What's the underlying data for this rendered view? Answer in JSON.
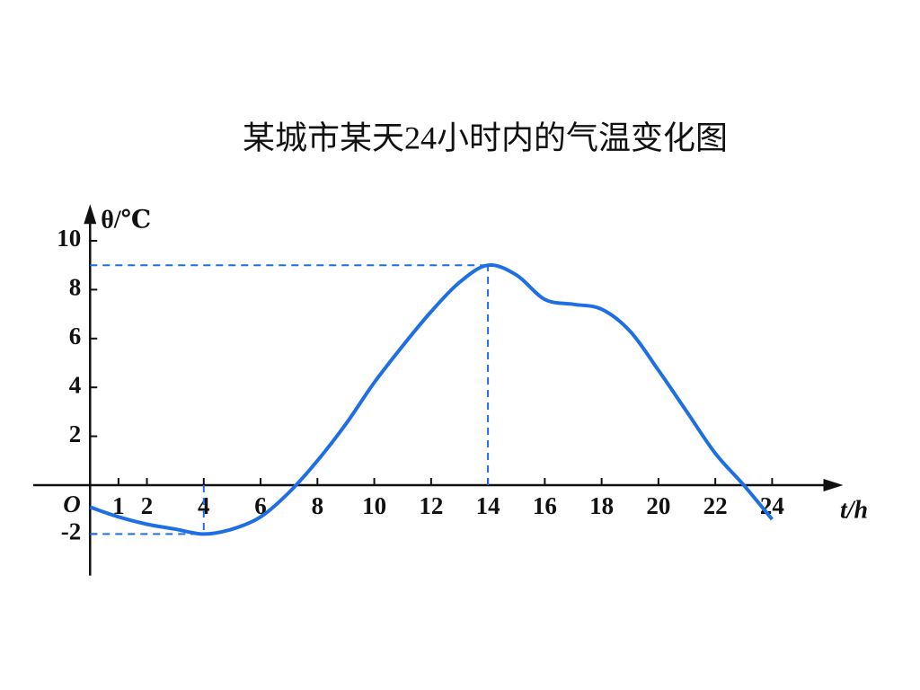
{
  "chart_data": {
    "type": "line",
    "title": "某城市某天24小时内的气温变化图",
    "x_label": "t/h",
    "y_label": "θ/℃",
    "origin_label": "O",
    "x": [
      0,
      1,
      2,
      3,
      4,
      5,
      6,
      7,
      8,
      9,
      10,
      11,
      12,
      13,
      14,
      15,
      16,
      17,
      18,
      19,
      20,
      21,
      22,
      23,
      24
    ],
    "series": [
      {
        "color": "#1e6fe3",
        "values": [
          -0.9,
          -1.3,
          -1.6,
          -1.8,
          -2,
          -1.8,
          -1.3,
          -0.3,
          1,
          2.5,
          4.2,
          5.7,
          7.1,
          8.3,
          9,
          8.6,
          7.6,
          7.4,
          7.2,
          6.3,
          4.7,
          3,
          1.3,
          0,
          -1.4
        ]
      }
    ],
    "xlim": [
      -2,
      26.5
    ],
    "ylim": [
      -3.7,
      11.5
    ],
    "xticks": [
      1,
      2,
      4,
      6,
      8,
      10,
      12,
      14,
      16,
      18,
      20,
      22,
      24
    ],
    "yticks": [
      -2,
      2,
      4,
      6,
      8,
      10
    ]
  }
}
